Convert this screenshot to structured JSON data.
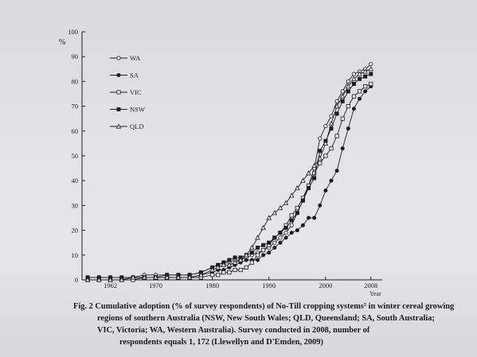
{
  "chart_data": {
    "type": "line",
    "title": "",
    "xlabel": "Year",
    "ylabel": "%",
    "xlim": [
      1957,
      2010
    ],
    "ylim": [
      0,
      100
    ],
    "y_ticks": [
      0,
      10,
      20,
      30,
      40,
      50,
      60,
      70,
      80,
      90,
      100
    ],
    "x_ticks": [
      {
        "value": 1962,
        "label": "1962"
      },
      {
        "value": 1970,
        "label": "1970"
      },
      {
        "value": 1980,
        "label": "1980"
      },
      {
        "value": 1990,
        "label": "1990"
      },
      {
        "value": 2000,
        "label": "2000"
      },
      {
        "value": 2008,
        "label": "2008"
      }
    ],
    "grid": false,
    "legend_position": "top-left",
    "series": [
      {
        "name": "WA",
        "marker": "open-circle",
        "x": [
          1958,
          1960,
          1962,
          1964,
          1966,
          1968,
          1970,
          1972,
          1974,
          1976,
          1978,
          1980,
          1981,
          1982,
          1983,
          1984,
          1985,
          1986,
          1987,
          1988,
          1989,
          1990,
          1991,
          1992,
          1993,
          1994,
          1995,
          1996,
          1997,
          1998,
          1999,
          2000,
          2001,
          2002,
          2003,
          2004,
          2005,
          2006,
          2007,
          2008
        ],
        "y": [
          1,
          1,
          1,
          1,
          1,
          2,
          2,
          2,
          2,
          2,
          3,
          5,
          6,
          7,
          7,
          8,
          8,
          9,
          10,
          11,
          12,
          13,
          15,
          17,
          19,
          22,
          27,
          32,
          38,
          45,
          57,
          62,
          66,
          72,
          76,
          80,
          83,
          84,
          85,
          87
        ]
      },
      {
        "name": "SA",
        "marker": "filled-circle",
        "x": [
          1958,
          1960,
          1962,
          1964,
          1966,
          1968,
          1970,
          1972,
          1974,
          1976,
          1978,
          1980,
          1981,
          1982,
          1983,
          1984,
          1985,
          1986,
          1987,
          1988,
          1989,
          1990,
          1991,
          1992,
          1993,
          1994,
          1995,
          1996,
          1997,
          1998,
          1999,
          2000,
          2001,
          2002,
          2003,
          2004,
          2005,
          2006,
          2007,
          2008
        ],
        "y": [
          0,
          0,
          0,
          0,
          1,
          1,
          1,
          1,
          1,
          1,
          2,
          3,
          4,
          4,
          5,
          6,
          7,
          8,
          8,
          8,
          10,
          11,
          13,
          15,
          17,
          19,
          20,
          22,
          25,
          25,
          30,
          36,
          40,
          44,
          53,
          61,
          69,
          73,
          76,
          78
        ]
      },
      {
        "name": "VIC",
        "marker": "open-square",
        "x": [
          1958,
          1960,
          1962,
          1964,
          1966,
          1968,
          1970,
          1972,
          1974,
          1976,
          1978,
          1980,
          1981,
          1982,
          1983,
          1984,
          1985,
          1986,
          1987,
          1988,
          1989,
          1990,
          1991,
          1992,
          1993,
          1994,
          1995,
          1996,
          1997,
          1998,
          1999,
          2000,
          2001,
          2002,
          2003,
          2004,
          2005,
          2006,
          2007,
          2008
        ],
        "y": [
          0,
          0,
          0,
          0,
          0,
          1,
          1,
          1,
          1,
          1,
          1,
          2,
          2,
          3,
          3,
          4,
          4,
          5,
          7,
          10,
          12,
          14,
          17,
          19,
          22,
          26,
          29,
          33,
          38,
          43,
          47,
          50,
          53,
          58,
          65,
          70,
          74,
          76,
          78,
          79
        ]
      },
      {
        "name": "NSW",
        "marker": "filled-square",
        "x": [
          1958,
          1960,
          1962,
          1964,
          1966,
          1968,
          1970,
          1972,
          1974,
          1976,
          1978,
          1980,
          1981,
          1982,
          1983,
          1984,
          1985,
          1986,
          1987,
          1988,
          1989,
          1990,
          1991,
          1992,
          1993,
          1994,
          1995,
          1996,
          1997,
          1998,
          1999,
          2000,
          2001,
          2002,
          2003,
          2004,
          2005,
          2006,
          2007,
          2008
        ],
        "y": [
          1,
          1,
          1,
          1,
          1,
          1,
          1,
          2,
          2,
          2,
          3,
          5,
          6,
          7,
          8,
          9,
          9,
          10,
          11,
          13,
          14,
          15,
          17,
          19,
          21,
          24,
          27,
          32,
          37,
          41,
          52,
          56,
          61,
          67,
          72,
          76,
          79,
          81,
          82,
          83
        ]
      },
      {
        "name": "QLD",
        "marker": "open-triangle",
        "x": [
          1958,
          1960,
          1962,
          1964,
          1966,
          1968,
          1970,
          1972,
          1974,
          1976,
          1978,
          1980,
          1981,
          1982,
          1983,
          1984,
          1985,
          1986,
          1987,
          1988,
          1989,
          1990,
          1991,
          1992,
          1993,
          1994,
          1995,
          1996,
          1997,
          1998,
          1999,
          2000,
          2001,
          2002,
          2003,
          2004,
          2005,
          2006,
          2007,
          2008
        ],
        "y": [
          0,
          0,
          0,
          0,
          1,
          1,
          1,
          1,
          1,
          1,
          2,
          4,
          5,
          6,
          6,
          7,
          8,
          10,
          13,
          17,
          21,
          25,
          27,
          29,
          31,
          34,
          37,
          40,
          43,
          46,
          49,
          55,
          63,
          70,
          74,
          78,
          81,
          83,
          84,
          85
        ]
      }
    ]
  },
  "caption": {
    "line1": "Fig. 2    Cumulative adoption (% of survey respondents) of No-Till cropping systems⁵ in winter cereal growing",
    "line2": "regions of southern Australia (NSW, New South Wales; QLD, Queensland; SA, South Australia;",
    "line3": "VIC, Victoria; WA, Western Australia). Survey conducted in 2008, number of",
    "line4": "respondents equals 1, 172 (Llewellyn and D'Emden, 2009)"
  }
}
